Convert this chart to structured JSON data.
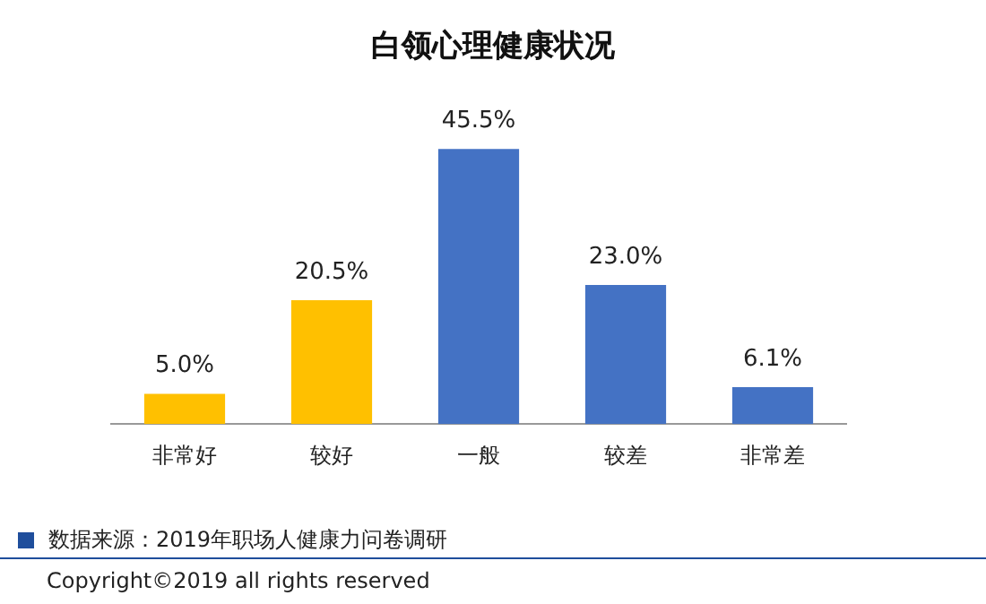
{
  "chart_data": {
    "type": "bar",
    "title": "白领心理健康状况",
    "categories": [
      "非常好",
      "较好",
      "一般",
      "较差",
      "非常差"
    ],
    "values": [
      5.0,
      20.5,
      45.5,
      23.0,
      6.1
    ],
    "colors": [
      "#ffc000",
      "#ffc000",
      "#4472c4",
      "#4472c4",
      "#4472c4"
    ],
    "value_labels": [
      "5.0%",
      "20.5%",
      "45.5%",
      "23.0%",
      "6.1%"
    ],
    "tick_labels": "x",
    "grid": false,
    "legend": false,
    "annotations": [
      "数据来源：2019年职场人健康力问卷调研",
      "Copyright©2019 all rights reserved"
    ]
  }
}
